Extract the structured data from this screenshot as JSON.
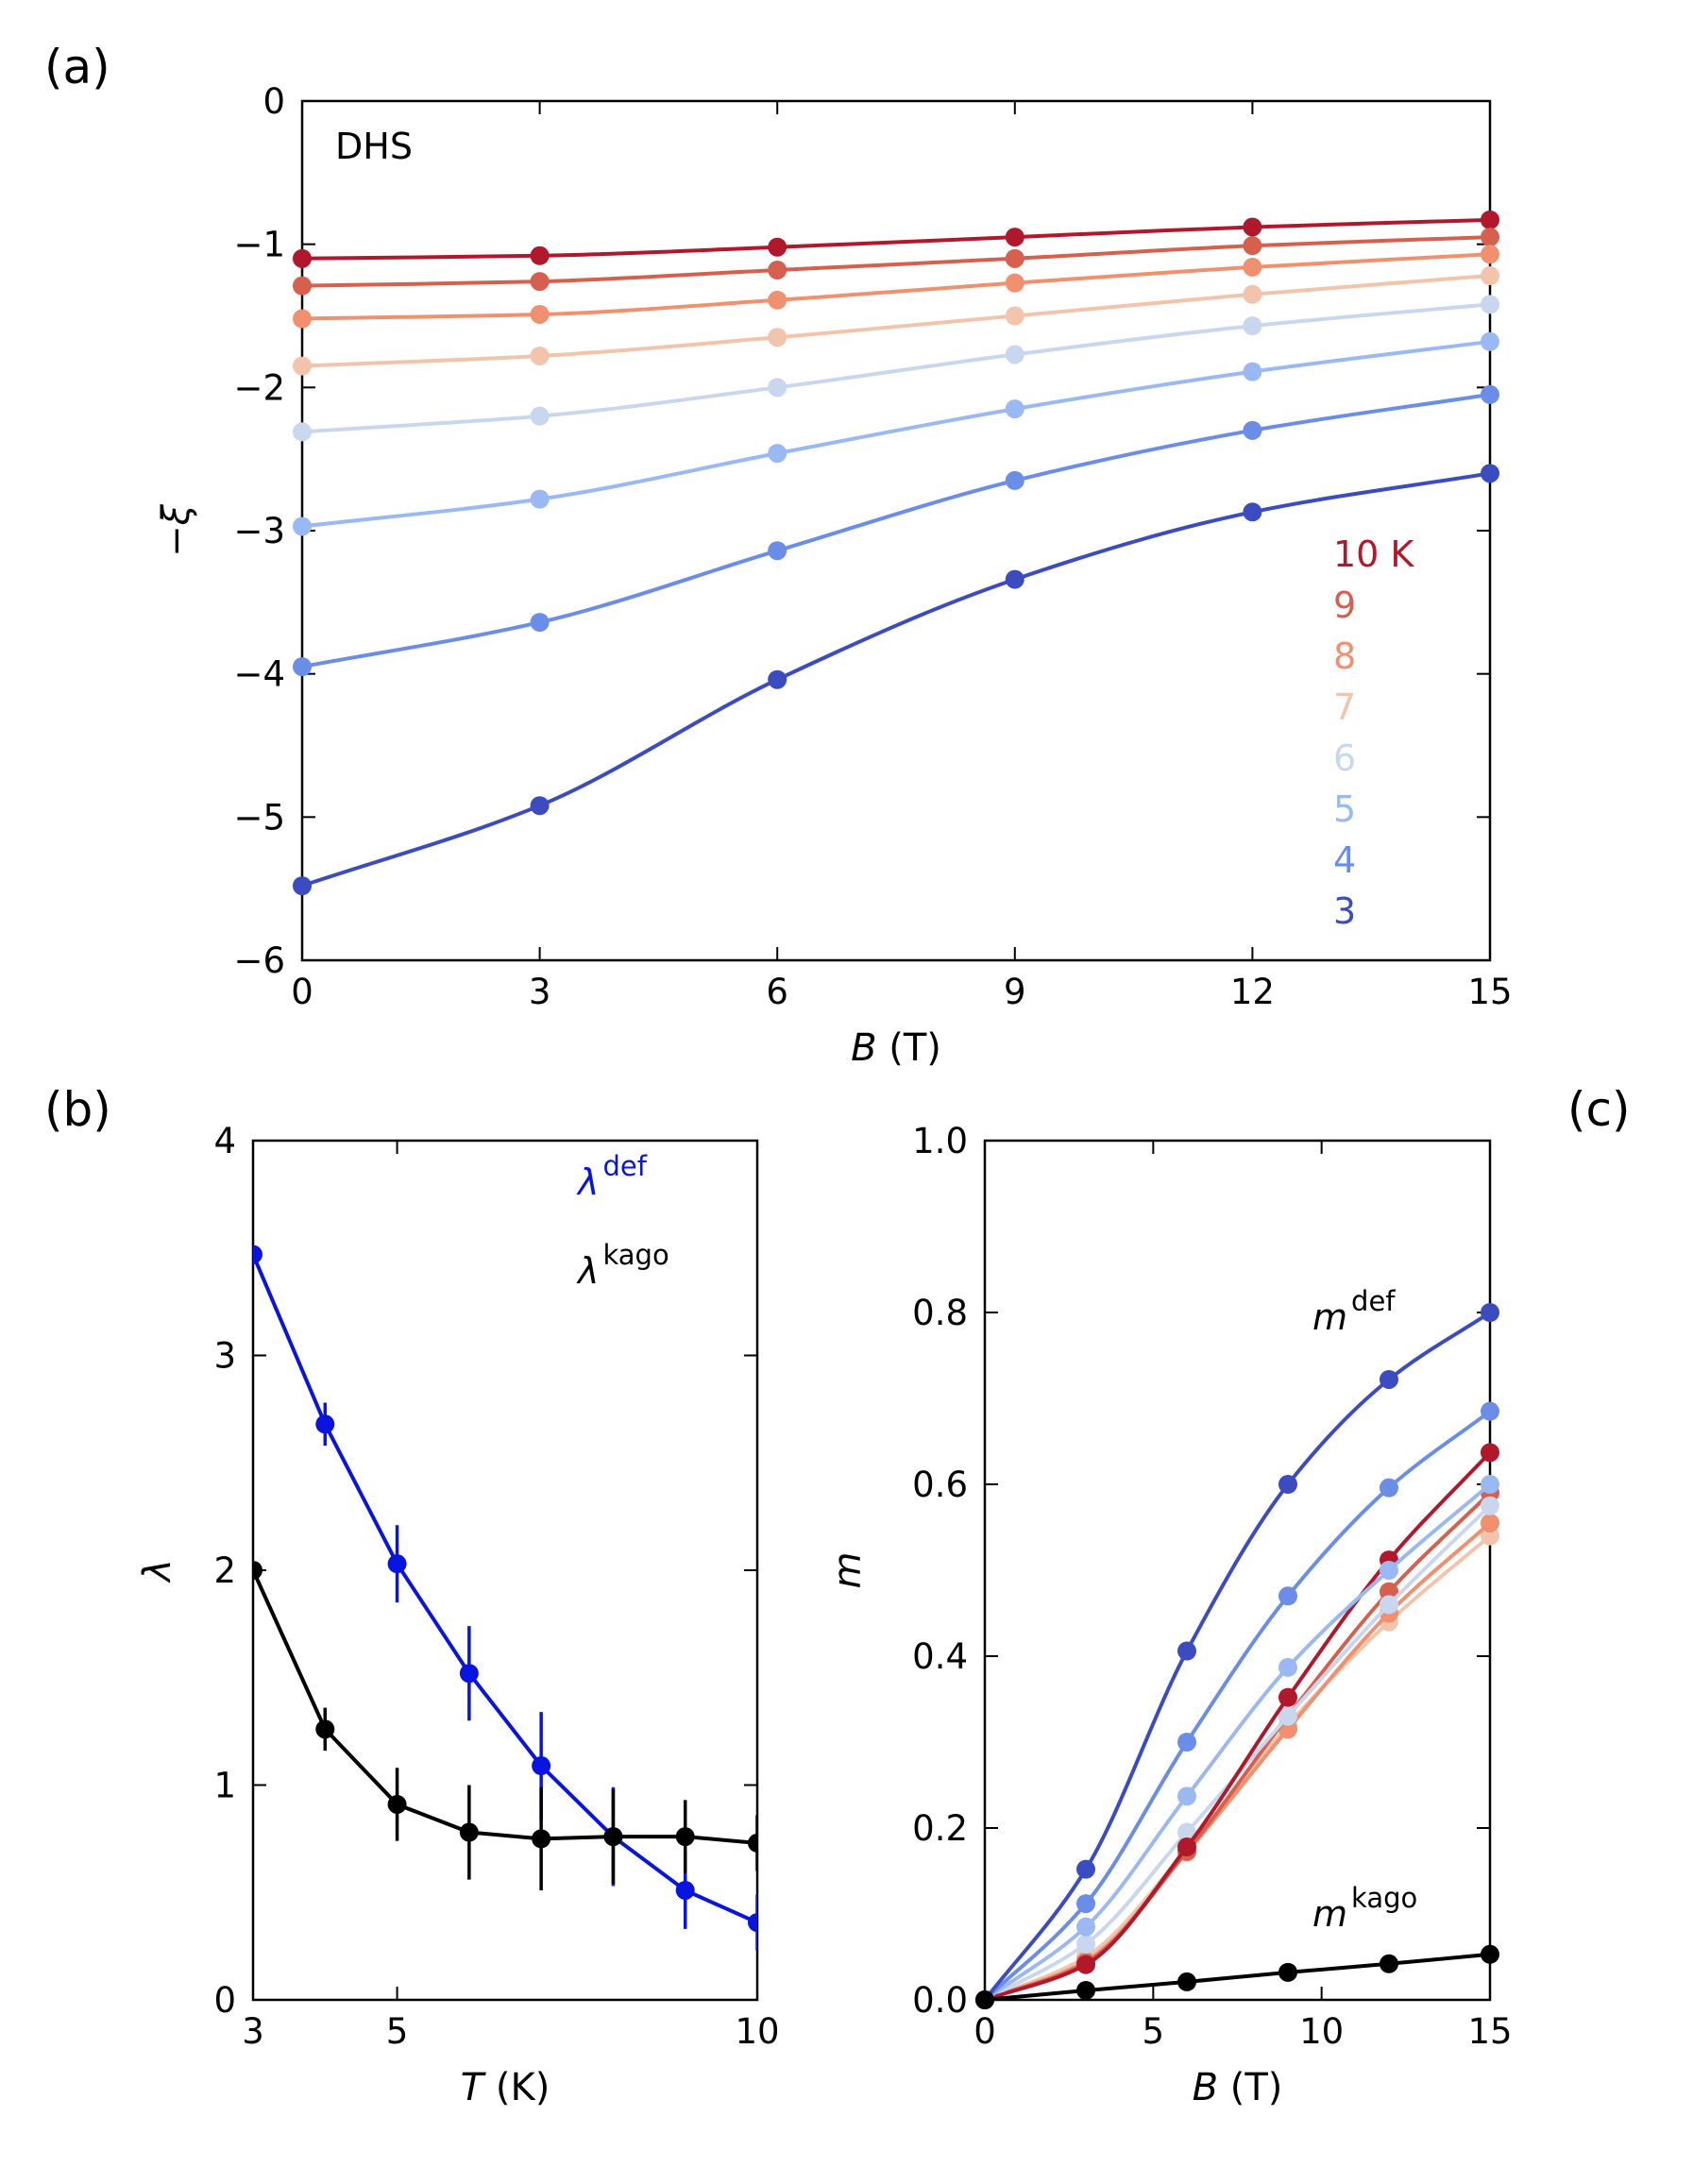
{
  "chart_data": [
    {
      "panel": "(a)",
      "type": "line",
      "annotation": "DHS",
      "xlabel_var": "B",
      "xlabel_unit": " (T)",
      "ylabel": "−ξ",
      "xlim": [
        0,
        15
      ],
      "ylim": [
        -6,
        0
      ],
      "xticks": [
        0,
        3,
        6,
        9,
        12,
        15
      ],
      "xtick_labels": [
        "0",
        "3",
        "6",
        "9",
        "12",
        "15"
      ],
      "yticks": [
        0,
        -1,
        -2,
        -3,
        -4,
        -5,
        -6
      ],
      "ytick_labels": [
        "0",
        "−1",
        "−2",
        "−3",
        "−4",
        "−5",
        "−6"
      ],
      "x": [
        0,
        3,
        6,
        9,
        12,
        15
      ],
      "grid": false,
      "legend_position": "right, inside",
      "series": [
        {
          "name": "10 K",
          "color": "#b2182b",
          "values": [
            -1.1,
            -1.08,
            -1.02,
            -0.95,
            -0.88,
            -0.83
          ]
        },
        {
          "name": "9",
          "color": "#d6604d",
          "values": [
            -1.29,
            -1.26,
            -1.18,
            -1.1,
            -1.01,
            -0.95
          ]
        },
        {
          "name": "8",
          "color": "#f0906e",
          "values": [
            -1.52,
            -1.49,
            -1.39,
            -1.27,
            -1.16,
            -1.07
          ]
        },
        {
          "name": "7",
          "color": "#f2c4ab",
          "values": [
            -1.85,
            -1.78,
            -1.65,
            -1.5,
            -1.35,
            -1.22
          ]
        },
        {
          "name": "6",
          "color": "#c9d7ee",
          "values": [
            -2.31,
            -2.2,
            -2.0,
            -1.77,
            -1.57,
            -1.42
          ]
        },
        {
          "name": "5",
          "color": "#9ab9f3",
          "values": [
            -2.97,
            -2.78,
            -2.46,
            -2.15,
            -1.89,
            -1.68
          ]
        },
        {
          "name": "4",
          "color": "#6a8ee8",
          "values": [
            -3.95,
            -3.64,
            -3.14,
            -2.65,
            -2.3,
            -2.05
          ]
        },
        {
          "name": "3",
          "color": "#3a4cc0",
          "values": [
            -5.48,
            -4.92,
            -4.04,
            -3.34,
            -2.87,
            -2.6
          ]
        }
      ]
    },
    {
      "panel": "(b)",
      "type": "line",
      "xlabel_var": "T",
      "xlabel_unit": " (K)",
      "ylabel": "λ",
      "xlim": [
        3,
        10
      ],
      "ylim": [
        0,
        4
      ],
      "xticks": [
        3,
        5,
        10
      ],
      "xtick_labels": [
        "3",
        "5",
        "10"
      ],
      "yticks": [
        0,
        1,
        2,
        3,
        4
      ],
      "ytick_labels": [
        "0",
        "1",
        "2",
        "3",
        "4"
      ],
      "x": [
        3,
        4,
        5,
        6,
        7,
        8,
        9,
        10
      ],
      "grid": false,
      "legend_position": "top-right",
      "series": [
        {
          "name_base": "λ",
          "name_sup": "def",
          "color": "#0a14e0",
          "values": [
            3.47,
            2.68,
            2.03,
            1.52,
            1.09,
            0.76,
            0.51,
            0.36
          ],
          "errors": [
            0.0,
            0.1,
            0.18,
            0.22,
            0.25,
            0.23,
            0.18,
            0.13
          ]
        },
        {
          "name_base": "λ",
          "name_sup": "kago",
          "color": "#000000",
          "values": [
            2.0,
            1.26,
            0.91,
            0.78,
            0.75,
            0.76,
            0.76,
            0.73
          ],
          "errors": [
            0.0,
            0.1,
            0.17,
            0.22,
            0.24,
            0.22,
            0.17,
            0.13
          ]
        }
      ]
    },
    {
      "panel": "(c)",
      "type": "line",
      "xlabel_var": "B",
      "xlabel_unit": " (T)",
      "ylabel": "m",
      "xlim": [
        0,
        15
      ],
      "ylim": [
        0,
        1.0
      ],
      "xticks": [
        0,
        5,
        10,
        15
      ],
      "xtick_labels": [
        "0",
        "5",
        "10",
        "15"
      ],
      "yticks": [
        0,
        0.2,
        0.4,
        0.6,
        0.8,
        1.0
      ],
      "ytick_labels": [
        "0.0",
        "0.2",
        "0.4",
        "0.6",
        "0.8",
        "1.0"
      ],
      "x": [
        0,
        3,
        6,
        9,
        12,
        15
      ],
      "grid": false,
      "annotations": [
        {
          "base": "m",
          "sup": "def"
        },
        {
          "base": "m",
          "sup": "kago"
        }
      ],
      "series": [
        {
          "color": "#f2c4ab",
          "values": [
            0,
            0.05,
            0.175,
            0.32,
            0.44,
            0.54
          ]
        },
        {
          "color": "#f0906e",
          "values": [
            0,
            0.045,
            0.172,
            0.315,
            0.45,
            0.555
          ]
        },
        {
          "color": "#d6604d",
          "values": [
            0,
            0.043,
            0.173,
            0.33,
            0.475,
            0.59
          ]
        },
        {
          "color": "#c9d7ee",
          "values": [
            0,
            0.065,
            0.195,
            0.33,
            0.46,
            0.575
          ]
        },
        {
          "color": "#b2182b",
          "values": [
            0,
            0.041,
            0.178,
            0.352,
            0.512,
            0.637
          ]
        },
        {
          "color": "#9ab9f3",
          "values": [
            0,
            0.085,
            0.237,
            0.387,
            0.5,
            0.6
          ]
        },
        {
          "color": "#6a8ee8",
          "values": [
            0,
            0.112,
            0.3,
            0.47,
            0.596,
            0.685
          ]
        },
        {
          "color": "#3a4cc0",
          "values": [
            0,
            0.152,
            0.406,
            0.6,
            0.722,
            0.8
          ]
        },
        {
          "color": "#000000",
          "values": [
            0,
            0.011,
            0.021,
            0.032,
            0.042,
            0.053
          ]
        }
      ]
    }
  ]
}
